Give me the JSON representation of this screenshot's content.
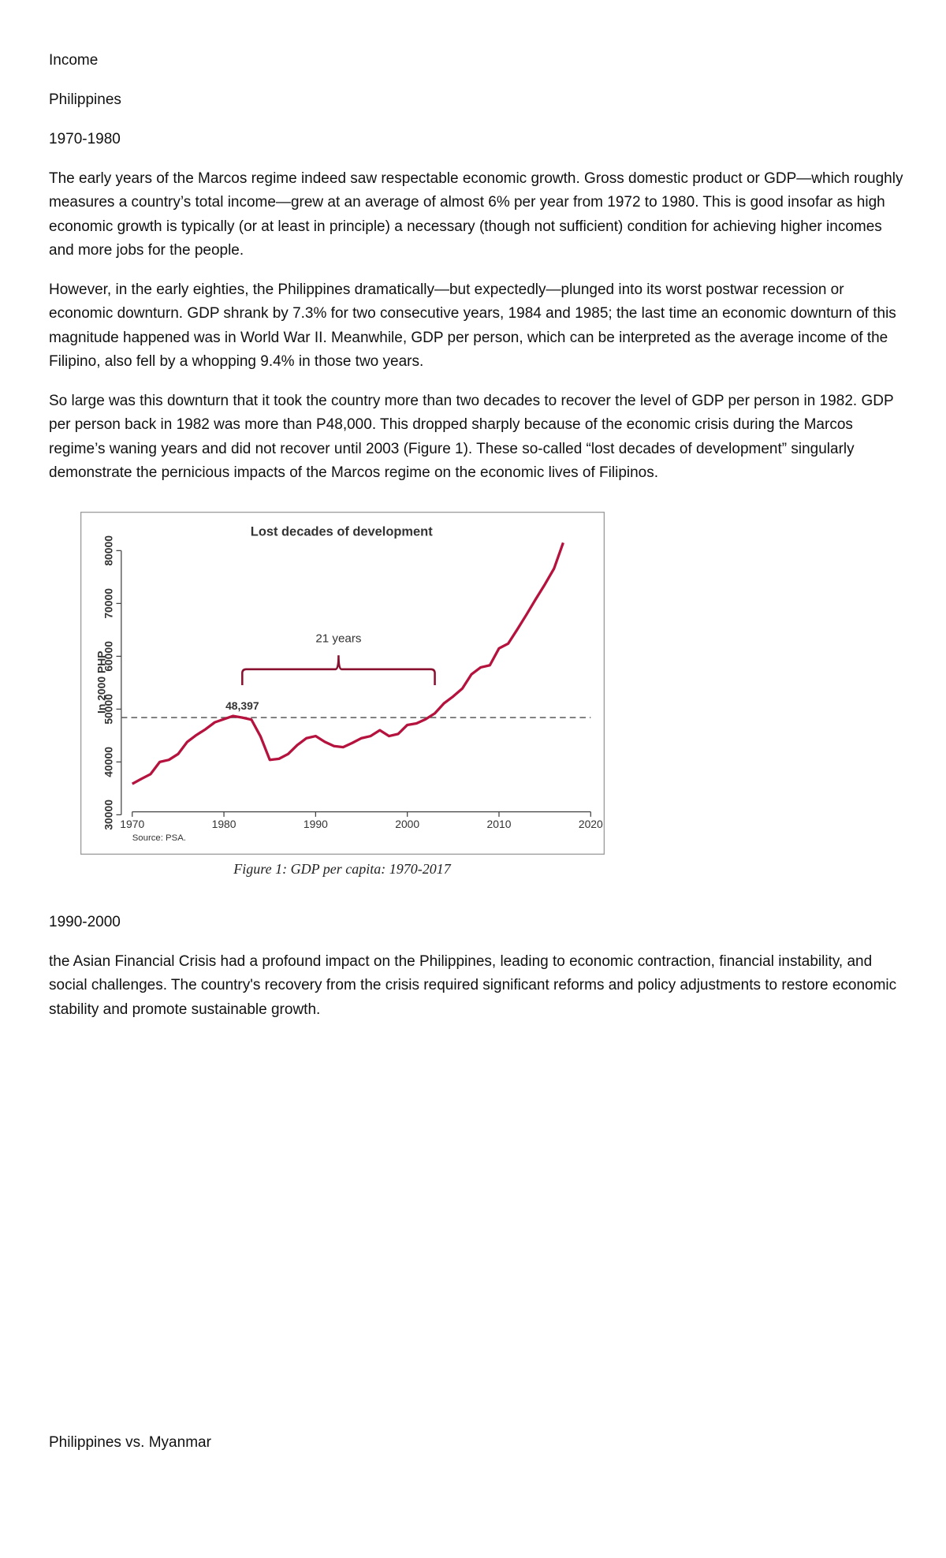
{
  "blocks": [
    "Income",
    "Philippines",
    "1970-1980",
    "The early years of the Marcos regime indeed saw respectable economic growth. Gross domestic product or GDP—which roughly measures a country’s total income—grew at an average of almost 6% per year from 1972 to 1980. This is good insofar as high economic growth is typically (or at least in principle) a necessary (though not sufficient) condition for achieving higher incomes and more jobs for the people.",
    "However, in the early eighties, the Philippines dramatically—but expectedly—plunged into its worst postwar recession or economic downturn. GDP shrank by 7.3% for two consecutive years, 1984 and 1985; the last time an economic downturn of this magnitude happened was in World War II. Meanwhile, GDP per person, which can be interpreted as the average income of the Filipino, also fell by a whopping 9.4% in those two years.",
    "So large was this downturn that it took the country more than two decades to recover the level of GDP per person in 1982. GDP per person back in 1982 was more than P48,000. This dropped sharply because of the economic crisis during the Marcos regime’s waning years and did not recover until 2003 (Figure 1). These so-called “lost decades of development” singularly demonstrate the pernicious impacts of the Marcos regime on the economic lives of Filipinos.",
    "1990-2000",
    "the Asian Financial Crisis had a profound impact on the Philippines, leading to economic contraction, financial instability, and social challenges. The country's recovery from the crisis required significant reforms and policy adjustments to restore economic stability and promote sustainable growth.",
    "Philippines vs. Myanmar"
  ],
  "caption": "Figure 1: GDP per capita: 1970-2017",
  "chart_data": {
    "type": "line",
    "title": "Lost decades of development",
    "y_label": "In 2000 PHP",
    "source": "Source: PSA.",
    "x": [
      1970,
      1971,
      1972,
      1973,
      1974,
      1975,
      1976,
      1977,
      1978,
      1979,
      1980,
      1981,
      1982,
      1983,
      1984,
      1985,
      1986,
      1987,
      1988,
      1989,
      1990,
      1991,
      1992,
      1993,
      1994,
      1995,
      1996,
      1997,
      1998,
      1999,
      2000,
      2001,
      2002,
      2003,
      2004,
      2005,
      2006,
      2007,
      2008,
      2009,
      2010,
      2011,
      2012,
      2013,
      2014,
      2015,
      2016,
      2017
    ],
    "values": [
      35850,
      36800,
      37700,
      40000,
      40400,
      41500,
      43800,
      45100,
      46200,
      47500,
      48100,
      48700,
      48397,
      48000,
      44800,
      40400,
      40600,
      41500,
      43200,
      44500,
      44900,
      43800,
      43000,
      42800,
      43600,
      44500,
      44900,
      46000,
      44900,
      45300,
      47000,
      47300,
      48100,
      49200,
      51100,
      52400,
      53900,
      56600,
      57900,
      58300,
      61500,
      62400,
      65100,
      67900,
      70800,
      73600,
      76600,
      81500
    ],
    "color": "#b5123e",
    "xlim": [
      1970,
      2020
    ],
    "xticks": [
      1970,
      1980,
      1990,
      2000,
      2010,
      2020
    ],
    "ylim": [
      30000,
      80000
    ],
    "yticks": [
      30000,
      40000,
      50000,
      60000,
      70000,
      80000
    ],
    "reference": {
      "value": 48397,
      "label": "48,397"
    },
    "span": {
      "start": 1982,
      "end": 2003,
      "label": "21 years"
    }
  }
}
